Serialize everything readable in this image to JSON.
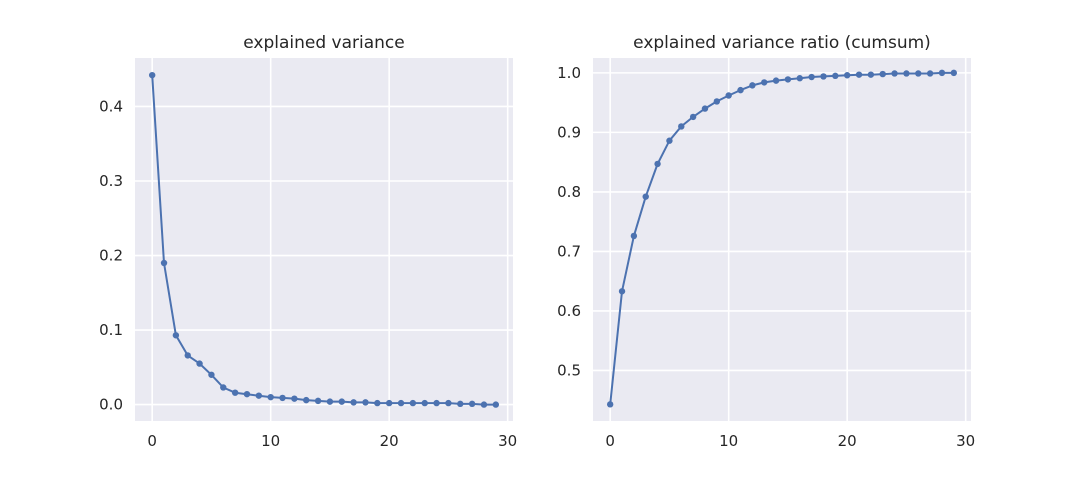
{
  "chart_data": [
    {
      "type": "line",
      "title": "explained variance",
      "xlabel": "",
      "ylabel": "",
      "xlim": [
        -1.45,
        30.45
      ],
      "ylim": [
        -0.022,
        0.465
      ],
      "xticks": [
        0,
        10,
        20,
        30
      ],
      "yticks": [
        0.0,
        0.1,
        0.2,
        0.3,
        0.4
      ],
      "ytick_labels": [
        "0.0",
        "0.1",
        "0.2",
        "0.3",
        "0.4"
      ],
      "grid": true,
      "color": "#4c72b0",
      "x": [
        0,
        1,
        2,
        3,
        4,
        5,
        6,
        7,
        8,
        9,
        10,
        11,
        12,
        13,
        14,
        15,
        16,
        17,
        18,
        19,
        20,
        21,
        22,
        23,
        24,
        25,
        26,
        27,
        28,
        29
      ],
      "y": [
        0.442,
        0.19,
        0.093,
        0.066,
        0.055,
        0.04,
        0.023,
        0.016,
        0.014,
        0.012,
        0.01,
        0.009,
        0.008,
        0.006,
        0.005,
        0.004,
        0.004,
        0.003,
        0.003,
        0.002,
        0.002,
        0.002,
        0.002,
        0.002,
        0.002,
        0.002,
        0.001,
        0.001,
        0.0,
        0.0
      ]
    },
    {
      "type": "line",
      "title": "explained variance ratio (cumsum)",
      "xlabel": "",
      "ylabel": "",
      "xlim": [
        -1.45,
        30.45
      ],
      "ylim": [
        0.415,
        1.025
      ],
      "xticks": [
        0,
        10,
        20,
        30
      ],
      "yticks": [
        0.5,
        0.6,
        0.7,
        0.8,
        0.9,
        1.0
      ],
      "ytick_labels": [
        "0.5",
        "0.6",
        "0.7",
        "0.8",
        "0.9",
        "1.0"
      ],
      "grid": true,
      "color": "#4c72b0",
      "x": [
        0,
        1,
        2,
        3,
        4,
        5,
        6,
        7,
        8,
        9,
        10,
        11,
        12,
        13,
        14,
        15,
        16,
        17,
        18,
        19,
        20,
        21,
        22,
        23,
        24,
        25,
        26,
        27,
        28,
        29
      ],
      "y": [
        0.443,
        0.633,
        0.726,
        0.792,
        0.847,
        0.886,
        0.91,
        0.926,
        0.94,
        0.952,
        0.962,
        0.971,
        0.979,
        0.984,
        0.987,
        0.989,
        0.991,
        0.993,
        0.994,
        0.995,
        0.996,
        0.997,
        0.997,
        0.998,
        0.999,
        0.999,
        0.999,
        0.999,
        1.0,
        1.0
      ]
    }
  ]
}
